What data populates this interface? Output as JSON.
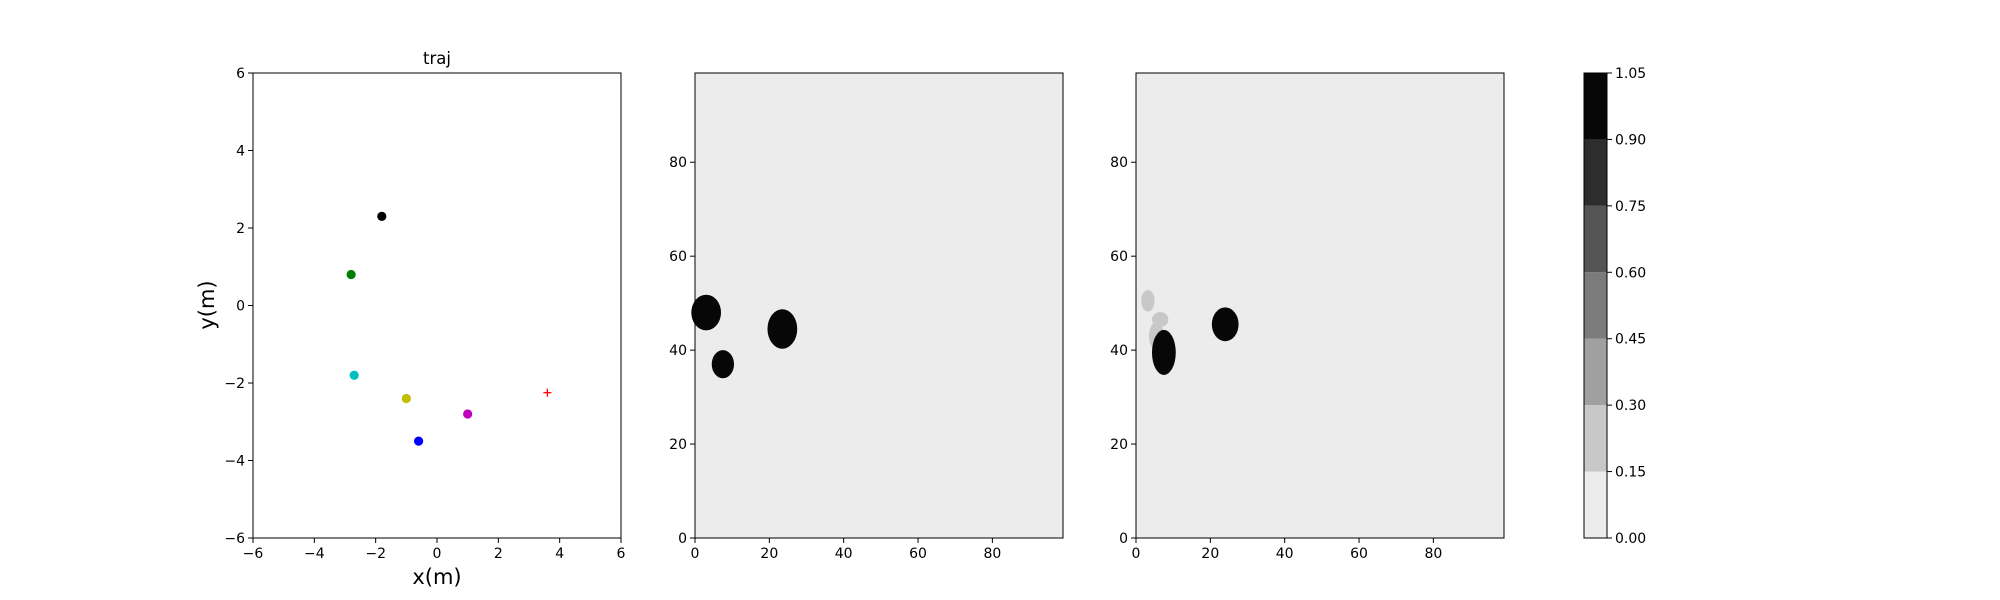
{
  "chart_data": [
    {
      "type": "scatter",
      "title": "traj",
      "xlabel": "x(m)",
      "ylabel": "y(m)",
      "xlim": [
        -6,
        6
      ],
      "ylim": [
        -6,
        6
      ],
      "xticks": [
        -6,
        -4,
        -2,
        0,
        2,
        4,
        6
      ],
      "yticks": [
        -6,
        -4,
        -2,
        0,
        2,
        4,
        6
      ],
      "grid": false,
      "points": [
        {
          "x": -1.8,
          "y": 2.3,
          "color": "#000000",
          "marker": "circle"
        },
        {
          "x": -2.8,
          "y": 0.8,
          "color": "#008000",
          "marker": "circle"
        },
        {
          "x": -2.7,
          "y": -1.8,
          "color": "#00bfbf",
          "marker": "circle"
        },
        {
          "x": -1.0,
          "y": -2.4,
          "color": "#bfbf00",
          "marker": "circle"
        },
        {
          "x": 1.0,
          "y": -2.8,
          "color": "#bf00bf",
          "marker": "circle"
        },
        {
          "x": -0.6,
          "y": -3.5,
          "color": "#0000ff",
          "marker": "circle"
        },
        {
          "x": 3.6,
          "y": -2.25,
          "color": "#ff0000",
          "marker": "plus"
        }
      ]
    },
    {
      "type": "heatmap",
      "xlim": [
        0,
        99
      ],
      "ylim": [
        0,
        99
      ],
      "xticks": [
        0,
        20,
        40,
        60,
        80
      ],
      "yticks": [
        0,
        20,
        40,
        60,
        80
      ],
      "background_level": 0.02,
      "blobs": [
        {
          "cx": 3,
          "cy": 48,
          "rx": 4,
          "ry": 3.8,
          "value": 1.0
        },
        {
          "cx": 7.5,
          "cy": 37,
          "rx": 3,
          "ry": 3,
          "value": 1.0
        },
        {
          "cx": 23.5,
          "cy": 44.5,
          "rx": 4,
          "ry": 4.2,
          "value": 1.0
        }
      ]
    },
    {
      "type": "heatmap",
      "xlim": [
        0,
        99
      ],
      "ylim": [
        0,
        99
      ],
      "xticks": [
        0,
        20,
        40,
        60,
        80
      ],
      "yticks": [
        0,
        20,
        40,
        60,
        80
      ],
      "background_level": 0.02,
      "blobs": [
        {
          "cx": 3.2,
          "cy": 50.5,
          "rx": 1.8,
          "ry": 2.3,
          "value": 0.2
        },
        {
          "cx": 6.5,
          "cy": 46.5,
          "rx": 2.2,
          "ry": 1.6,
          "value": 0.18
        },
        {
          "cx": 5.5,
          "cy": 43,
          "rx": 2,
          "ry": 3,
          "value": 0.2
        },
        {
          "cx": 7.5,
          "cy": 39.5,
          "rx": 3.2,
          "ry": 4.8,
          "value": 0.98
        },
        {
          "cx": 24,
          "cy": 45.5,
          "rx": 3.6,
          "ry": 3.6,
          "value": 0.97
        }
      ]
    },
    {
      "type": "colorbar",
      "levels": [
        0.0,
        0.15,
        0.3,
        0.45,
        0.6,
        0.75,
        0.9,
        1.05
      ],
      "tick_labels": [
        "0.00",
        "0.15",
        "0.30",
        "0.45",
        "0.60",
        "0.75",
        "0.90",
        "1.05"
      ],
      "colors": [
        "#ececec",
        "#c8c8c8",
        "#a0a0a0",
        "#7b7b7b",
        "#555555",
        "#2d2d2d",
        "#070707"
      ]
    }
  ]
}
